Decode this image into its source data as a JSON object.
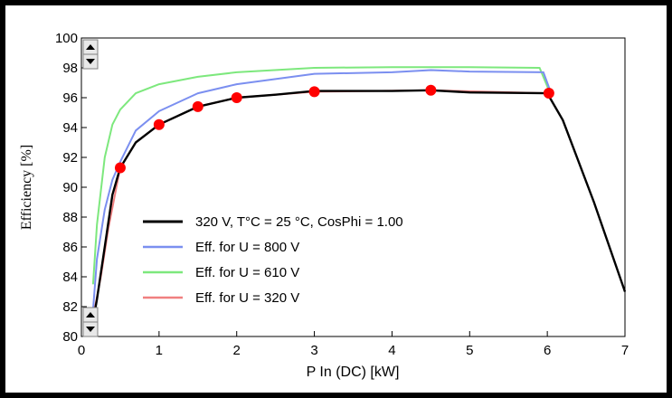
{
  "chart_data": {
    "type": "line",
    "title": "",
    "xlabel": "P In (DC) [kW]",
    "ylabel": "Efficiency [%]",
    "xlim": [
      0,
      7
    ],
    "ylim": [
      80,
      100
    ],
    "xticks": [
      0,
      1,
      2,
      3,
      4,
      5,
      6,
      7
    ],
    "yticks": [
      80,
      82,
      84,
      86,
      88,
      90,
      92,
      94,
      96,
      98,
      100
    ],
    "grid": false,
    "legend_position": "bottom-left",
    "series": [
      {
        "name": "Eff. for U = 610 V",
        "color": "#7de87d",
        "points": [
          [
            0.15,
            83.5
          ],
          [
            0.2,
            87.5
          ],
          [
            0.3,
            92.0
          ],
          [
            0.4,
            94.2
          ],
          [
            0.5,
            95.2
          ],
          [
            0.7,
            96.3
          ],
          [
            1.0,
            96.9
          ],
          [
            1.5,
            97.4
          ],
          [
            2.0,
            97.7
          ],
          [
            3.0,
            98.0
          ],
          [
            4.0,
            98.05
          ],
          [
            5.0,
            98.05
          ],
          [
            5.9,
            98.0
          ],
          [
            6.02,
            96.5
          ]
        ]
      },
      {
        "name": "Eff. for U = 800 V",
        "color": "#7b8ff0",
        "points": [
          [
            0.15,
            81.8
          ],
          [
            0.2,
            85.2
          ],
          [
            0.3,
            88.5
          ],
          [
            0.4,
            90.5
          ],
          [
            0.5,
            91.7
          ],
          [
            0.7,
            93.8
          ],
          [
            1.0,
            95.1
          ],
          [
            1.5,
            96.3
          ],
          [
            2.0,
            96.9
          ],
          [
            3.0,
            97.6
          ],
          [
            4.0,
            97.7
          ],
          [
            4.5,
            97.85
          ],
          [
            5.0,
            97.75
          ],
          [
            5.95,
            97.7
          ],
          [
            6.05,
            96.3
          ]
        ]
      },
      {
        "name": "Eff. for U = 320 V",
        "color": "#f08080",
        "points": [
          [
            0.15,
            81.3
          ],
          [
            0.25,
            84.0
          ],
          [
            0.35,
            87.3
          ],
          [
            0.5,
            91.3
          ],
          [
            0.7,
            93.0
          ],
          [
            1.0,
            94.2
          ],
          [
            1.5,
            95.4
          ],
          [
            2.0,
            96.0
          ],
          [
            3.0,
            96.4
          ],
          [
            4.5,
            96.5
          ],
          [
            6.02,
            96.3
          ]
        ]
      },
      {
        "name": "320 V, T°C = 25 °C, CosPhi = 1.00",
        "color": "#000000",
        "points": [
          [
            0.15,
            81.0
          ],
          [
            0.2,
            82.5
          ],
          [
            0.3,
            86.0
          ],
          [
            0.4,
            89.5
          ],
          [
            0.5,
            91.3
          ],
          [
            0.7,
            93.0
          ],
          [
            1.0,
            94.2
          ],
          [
            1.5,
            95.4
          ],
          [
            2.0,
            96.0
          ],
          [
            2.5,
            96.2
          ],
          [
            3.0,
            96.45
          ],
          [
            4.0,
            96.45
          ],
          [
            4.5,
            96.5
          ],
          [
            5.0,
            96.35
          ],
          [
            6.0,
            96.3
          ],
          [
            6.2,
            94.5
          ],
          [
            6.6,
            89.0
          ],
          [
            7.0,
            83.0
          ]
        ]
      }
    ],
    "markers": {
      "color": "#ff0000",
      "points": [
        [
          0.5,
          91.3
        ],
        [
          1.0,
          94.2
        ],
        [
          1.5,
          95.4
        ],
        [
          2.0,
          96.0
        ],
        [
          3.0,
          96.4
        ],
        [
          4.5,
          96.5
        ],
        [
          6.02,
          96.3
        ]
      ]
    },
    "legend": [
      {
        "label": "320 V, T°C = 25 °C, CosPhi = 1.00",
        "color": "#000000"
      },
      {
        "label": "Eff. for U = 800 V",
        "color": "#7b8ff0"
      },
      {
        "label": "Eff. for U = 610 V",
        "color": "#7de87d"
      },
      {
        "label": "Eff. for U = 320 V",
        "color": "#f08080"
      }
    ]
  }
}
